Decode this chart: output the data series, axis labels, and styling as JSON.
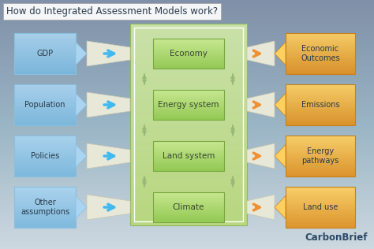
{
  "title": "How do Integrated Assessment Models work?",
  "title_fontsize": 8.5,
  "bg_color_top": "#c5d5dd",
  "bg_color_bot": "#8aa5b5",
  "left_boxes": [
    "GDP",
    "Population",
    "Policies",
    "Other\nassumptions"
  ],
  "center_boxes": [
    "Economy",
    "Energy system",
    "Land system",
    "Climate"
  ],
  "right_boxes": [
    "Economic\nOutcomes",
    "Emissions",
    "Energy\npathways",
    "Land use"
  ],
  "left_box_color_top": "#aad4f0",
  "left_box_color_bot": "#7ab8de",
  "left_box_edge": "#88c0e0",
  "center_bg_color": "#d0e8a8",
  "center_bg_edge": "#90b860",
  "center_box_color_top": "#c8e890",
  "center_box_color_bot": "#90c850",
  "center_box_edge": "#78a840",
  "right_box_color_top": "#ffd060",
  "right_box_color_bot": "#e09020",
  "right_box_edge": "#c8801a",
  "left_arrow_color": "#40b8f0",
  "right_arrow_color": "#f09030",
  "connector_color": "#e8e8d8",
  "connector_edge": "#c8c8b0",
  "font_color_dark": "#2a3a4a",
  "font_color_center": "#384830",
  "vert_arrow_color": "#98b878",
  "watermark": "CarbonBrief",
  "watermark_color": "#1a3a5a"
}
